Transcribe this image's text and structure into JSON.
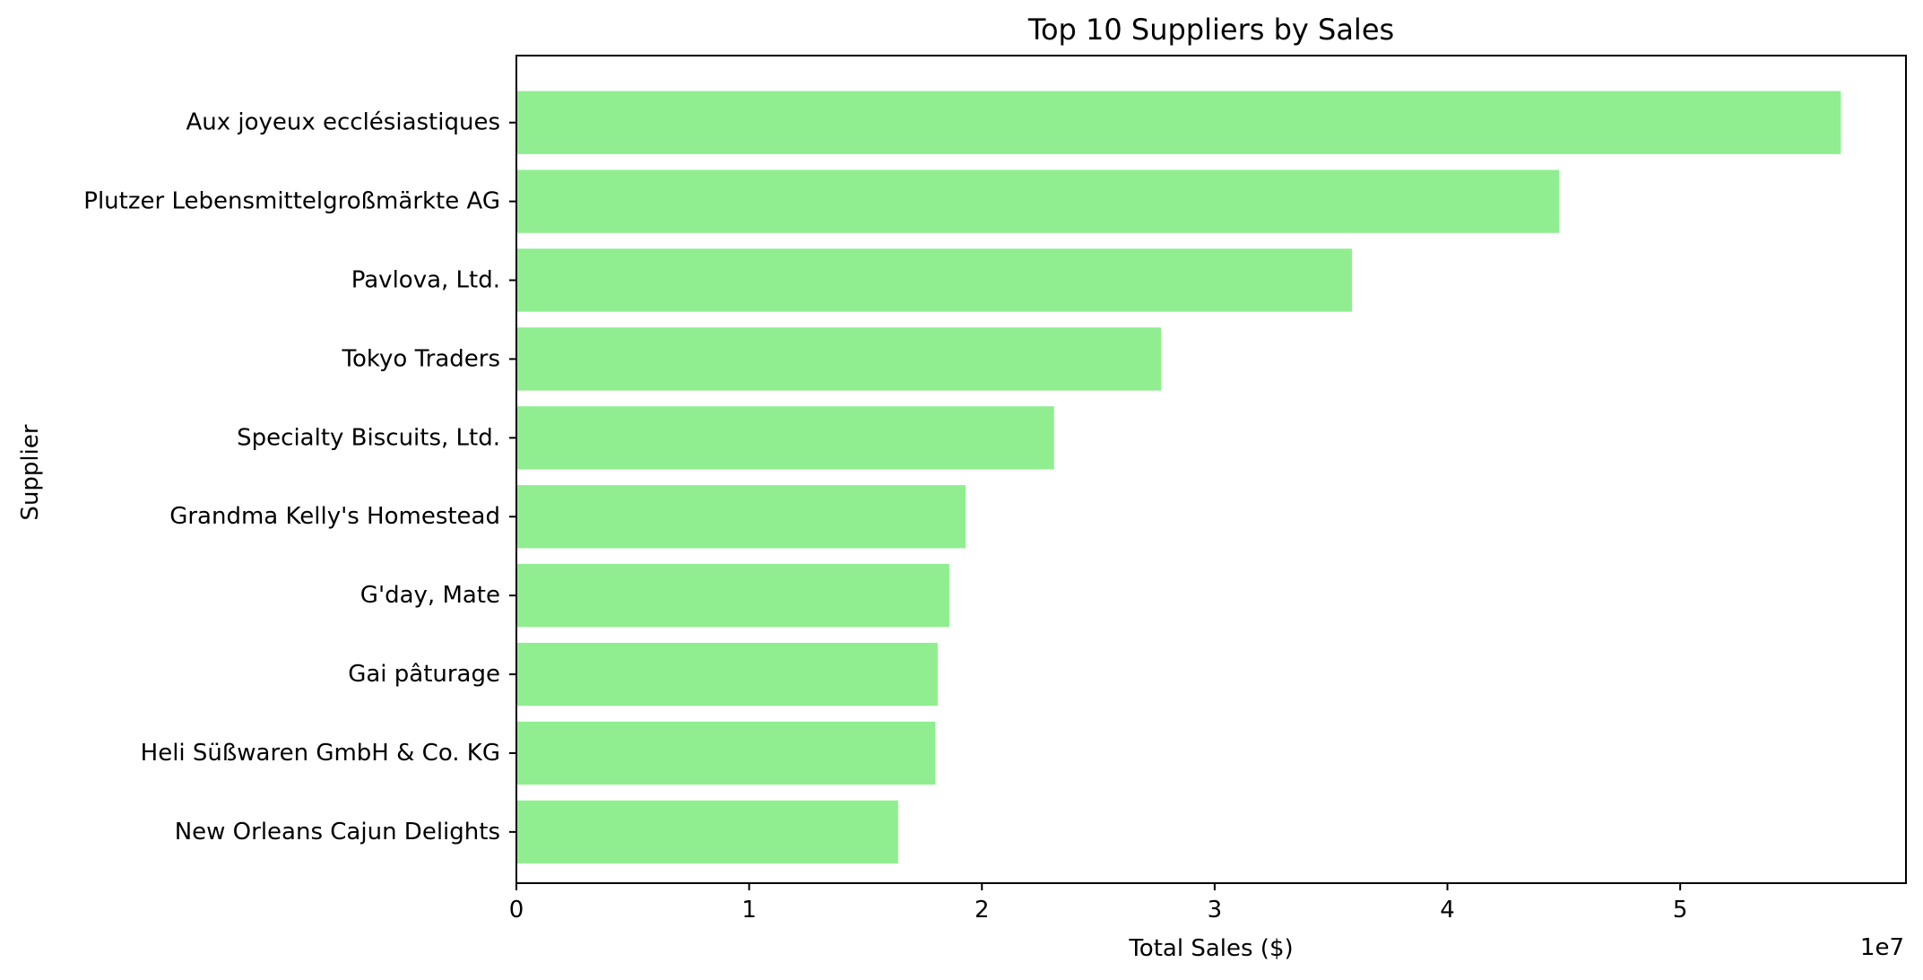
{
  "chart_data": {
    "type": "bar",
    "orientation": "horizontal",
    "title": "Top 10 Suppliers by Sales",
    "xlabel": "Total Sales ($)",
    "ylabel": "Supplier",
    "x_offset_text": "1e7",
    "x_scale": 10000000,
    "xlim": [
      0,
      59700000
    ],
    "x_ticks": [
      0,
      1,
      2,
      3,
      4,
      5
    ],
    "categories": [
      "Aux joyeux ecclésiastiques",
      "Plutzer Lebensmittelgroßmärkte AG",
      "Pavlova, Ltd.",
      "Tokyo Traders",
      "Specialty Biscuits, Ltd.",
      "Grandma Kelly's Homestead",
      "G'day, Mate",
      "Gai pâturage",
      "Heli Süßwaren GmbH & Co. KG",
      "New Orleans Cajun Delights"
    ],
    "values": [
      56900000,
      44800000,
      35900000,
      27700000,
      23100000,
      19300000,
      18600000,
      18100000,
      18000000,
      16400000
    ],
    "bar_color": "#90ee90",
    "grid": false,
    "legend": "none"
  }
}
